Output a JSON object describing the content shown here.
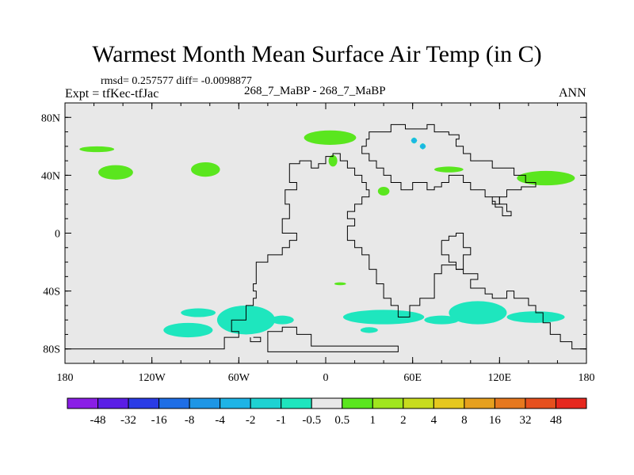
{
  "title": "Warmest Month Mean Surface Air Temp (in C)",
  "stats_text": "rmsd= 0.257577 diff= -0.0098877",
  "experiment": "Expt = tfKec-tfJac",
  "comparison": "268_7_MaBP - 268_7_MaBP",
  "period": "ANN",
  "lat_ticks": [
    {
      "lat": 80,
      "label": "80N"
    },
    {
      "lat": 40,
      "label": "40N"
    },
    {
      "lat": 0,
      "label": "0"
    },
    {
      "lat": -40,
      "label": "40S"
    },
    {
      "lat": -80,
      "label": "80S"
    }
  ],
  "lon_ticks": [
    {
      "lon": -180,
      "label": "180"
    },
    {
      "lon": -120,
      "label": "120W"
    },
    {
      "lon": -60,
      "label": "60W"
    },
    {
      "lon": 0,
      "label": "0"
    },
    {
      "lon": 60,
      "label": "60E"
    },
    {
      "lon": 120,
      "label": "120E"
    },
    {
      "lon": 180,
      "label": "180"
    }
  ],
  "colorbar": {
    "colors": [
      "#8a1ee6",
      "#5a1ee6",
      "#2a3ce6",
      "#1e6ee6",
      "#1e96e6",
      "#1eb4e6",
      "#1ed2d2",
      "#1ee6be",
      "#e8e8e8",
      "#5ae61e",
      "#a0e61e",
      "#c8dc1e",
      "#e6c81e",
      "#e6a01e",
      "#e6781e",
      "#e6501e",
      "#e6281e"
    ],
    "labels": [
      "-48",
      "-32",
      "-16",
      "-8",
      "-4",
      "-2",
      "-1",
      "-0.5",
      "0.5",
      "1",
      "2",
      "4",
      "8",
      "16",
      "32",
      "48"
    ]
  },
  "colors": {
    "background_field": "#e8e8e8",
    "positive_anomaly": "#5ae61e",
    "negative_anomaly": "#1ee6be",
    "strong_negative": "#1eb4e6"
  },
  "anomaly_regions": [
    {
      "sign": "positive",
      "lon": -145,
      "lat": 42,
      "rlon": 12,
      "rlat": 5
    },
    {
      "sign": "positive",
      "lon": -158,
      "lat": 58,
      "rlon": 12,
      "rlat": 2
    },
    {
      "sign": "positive",
      "lon": -83,
      "lat": 44,
      "rlon": 10,
      "rlat": 5
    },
    {
      "sign": "positive",
      "lon": 3,
      "lat": 66,
      "rlon": 18,
      "rlat": 5
    },
    {
      "sign": "positive",
      "lon": 5,
      "lat": 50,
      "rlon": 3,
      "rlat": 4
    },
    {
      "sign": "positive",
      "lon": 40,
      "lat": 29,
      "rlon": 4,
      "rlat": 3
    },
    {
      "sign": "positive",
      "lon": 85,
      "lat": 44,
      "rlon": 10,
      "rlat": 2
    },
    {
      "sign": "positive",
      "lon": 152,
      "lat": 38,
      "rlon": 20,
      "rlat": 5
    },
    {
      "sign": "positive",
      "lon": 10,
      "lat": -35,
      "rlon": 4,
      "rlat": 1
    },
    {
      "sign": "negative",
      "lon": 61,
      "lat": 64,
      "rlon": 2,
      "rlat": 2
    },
    {
      "sign": "negative",
      "lon": 67,
      "lat": 60,
      "rlon": 2,
      "rlat": 2
    },
    {
      "sign": "negative",
      "lon": -95,
      "lat": -67,
      "rlon": 17,
      "rlat": 5
    },
    {
      "sign": "negative",
      "lon": -55,
      "lat": -60,
      "rlon": 20,
      "rlat": 10
    },
    {
      "sign": "negative",
      "lon": -88,
      "lat": -55,
      "rlon": 12,
      "rlat": 3
    },
    {
      "sign": "negative",
      "lon": -30,
      "lat": -60,
      "rlon": 8,
      "rlat": 3
    },
    {
      "sign": "negative",
      "lon": 40,
      "lat": -58,
      "rlon": 28,
      "rlat": 5
    },
    {
      "sign": "negative",
      "lon": 105,
      "lat": -55,
      "rlon": 20,
      "rlat": 8
    },
    {
      "sign": "negative",
      "lon": 145,
      "lat": -58,
      "rlon": 20,
      "rlat": 4
    },
    {
      "sign": "negative",
      "lon": 80,
      "lat": -60,
      "rlon": 12,
      "rlat": 3
    },
    {
      "sign": "negative",
      "lon": 30,
      "lat": -67,
      "rlon": 6,
      "rlat": 2
    }
  ],
  "coastlines": [
    [
      [
        -180,
        -83
      ],
      [
        -180,
        -80
      ],
      [
        -70,
        -80
      ],
      [
        -70,
        -72
      ],
      [
        -60,
        -72
      ],
      [
        -60,
        -68
      ],
      [
        -65,
        -68
      ],
      [
        -65,
        -60
      ],
      [
        -55,
        -60
      ],
      [
        -55,
        -50
      ],
      [
        -50,
        -50
      ],
      [
        -50,
        -45
      ],
      [
        -48,
        -45
      ],
      [
        -48,
        -40
      ],
      [
        -50,
        -40
      ],
      [
        -50,
        -35
      ],
      [
        -48,
        -35
      ],
      [
        -48,
        -20
      ],
      [
        -40,
        -20
      ],
      [
        -40,
        -15
      ],
      [
        -30,
        -15
      ],
      [
        -30,
        -10
      ],
      [
        -25,
        -10
      ],
      [
        -25,
        -5
      ],
      [
        -20,
        -5
      ],
      [
        -20,
        0
      ],
      [
        -30,
        0
      ],
      [
        -30,
        5
      ],
      [
        -30,
        10
      ],
      [
        -25,
        10
      ],
      [
        -25,
        20
      ],
      [
        -28,
        20
      ],
      [
        -28,
        30
      ],
      [
        -20,
        30
      ],
      [
        -20,
        35
      ],
      [
        -25,
        35
      ],
      [
        -25,
        48
      ],
      [
        -18,
        48
      ],
      [
        -18,
        50
      ],
      [
        -10,
        50
      ],
      [
        -10,
        45
      ],
      [
        -5,
        45
      ],
      [
        -5,
        48
      ],
      [
        0,
        48
      ],
      [
        0,
        53
      ],
      [
        5,
        53
      ],
      [
        5,
        55
      ],
      [
        10,
        55
      ],
      [
        10,
        50
      ],
      [
        15,
        50
      ],
      [
        15,
        45
      ],
      [
        20,
        45
      ],
      [
        20,
        40
      ],
      [
        25,
        40
      ],
      [
        25,
        35
      ],
      [
        28,
        35
      ],
      [
        28,
        30
      ],
      [
        30,
        30
      ],
      [
        30,
        25
      ],
      [
        25,
        25
      ],
      [
        25,
        20
      ],
      [
        20,
        20
      ],
      [
        20,
        15
      ],
      [
        15,
        15
      ],
      [
        15,
        10
      ],
      [
        20,
        10
      ],
      [
        20,
        5
      ],
      [
        15,
        5
      ],
      [
        15,
        -5
      ],
      [
        20,
        -5
      ],
      [
        20,
        -10
      ],
      [
        25,
        -10
      ],
      [
        25,
        -15
      ],
      [
        30,
        -15
      ],
      [
        30,
        -25
      ],
      [
        35,
        -25
      ],
      [
        35,
        -35
      ],
      [
        40,
        -35
      ],
      [
        40,
        -45
      ],
      [
        45,
        -45
      ],
      [
        45,
        -50
      ],
      [
        50,
        -50
      ],
      [
        50,
        -58
      ],
      [
        58,
        -58
      ],
      [
        58,
        -50
      ],
      [
        65,
        -50
      ],
      [
        65,
        -45
      ],
      [
        75,
        -45
      ],
      [
        75,
        -28
      ],
      [
        80,
        -28
      ],
      [
        80,
        -22
      ],
      [
        90,
        -22
      ],
      [
        90,
        -25
      ],
      [
        95,
        -25
      ],
      [
        95,
        -28
      ],
      [
        105,
        -28
      ],
      [
        105,
        -32
      ],
      [
        100,
        -32
      ],
      [
        100,
        -38
      ],
      [
        110,
        -38
      ],
      [
        110,
        -42
      ],
      [
        115,
        -42
      ],
      [
        115,
        -45
      ],
      [
        125,
        -45
      ],
      [
        125,
        -40
      ],
      [
        130,
        -40
      ],
      [
        130,
        -45
      ],
      [
        140,
        -45
      ],
      [
        140,
        -50
      ],
      [
        145,
        -50
      ],
      [
        145,
        -55
      ],
      [
        150,
        -55
      ],
      [
        150,
        -62
      ],
      [
        155,
        -62
      ],
      [
        155,
        -70
      ],
      [
        162,
        -70
      ],
      [
        162,
        -75
      ],
      [
        170,
        -75
      ],
      [
        170,
        -80
      ],
      [
        180,
        -80
      ]
    ],
    [
      [
        -40,
        -75
      ],
      [
        -40,
        -68
      ],
      [
        -30,
        -68
      ],
      [
        -30,
        -65
      ],
      [
        -20,
        -65
      ],
      [
        -20,
        -70
      ],
      [
        -10,
        -70
      ],
      [
        -10,
        -78
      ],
      [
        50,
        -78
      ],
      [
        50,
        -82
      ],
      [
        -40,
        -82
      ],
      [
        -40,
        -75
      ]
    ],
    [
      [
        -50,
        -72
      ],
      [
        -45,
        -72
      ],
      [
        -45,
        -75
      ],
      [
        -52,
        -75
      ],
      [
        -52,
        -72
      ]
    ],
    [
      [
        32,
        70
      ],
      [
        45,
        70
      ],
      [
        45,
        75
      ],
      [
        55,
        75
      ],
      [
        55,
        72
      ],
      [
        70,
        72
      ],
      [
        70,
        75
      ],
      [
        75,
        75
      ],
      [
        75,
        70
      ],
      [
        85,
        70
      ],
      [
        85,
        68
      ],
      [
        92,
        68
      ],
      [
        92,
        65
      ],
      [
        90,
        65
      ],
      [
        90,
        60
      ],
      [
        95,
        60
      ],
      [
        95,
        55
      ],
      [
        100,
        55
      ],
      [
        100,
        50
      ],
      [
        115,
        50
      ],
      [
        115,
        45
      ],
      [
        130,
        45
      ],
      [
        130,
        40
      ],
      [
        138,
        40
      ],
      [
        138,
        35
      ],
      [
        145,
        35
      ],
      [
        145,
        32
      ],
      [
        135,
        32
      ],
      [
        135,
        30
      ],
      [
        125,
        30
      ],
      [
        125,
        25
      ],
      [
        120,
        25
      ],
      [
        120,
        20
      ],
      [
        115,
        20
      ],
      [
        115,
        25
      ],
      [
        110,
        25
      ],
      [
        110,
        30
      ],
      [
        100,
        30
      ],
      [
        100,
        35
      ],
      [
        95,
        35
      ],
      [
        95,
        40
      ],
      [
        85,
        40
      ],
      [
        85,
        35
      ],
      [
        80,
        35
      ],
      [
        80,
        32
      ],
      [
        75,
        32
      ],
      [
        75,
        30
      ],
      [
        70,
        30
      ],
      [
        70,
        35
      ],
      [
        60,
        35
      ],
      [
        60,
        30
      ],
      [
        52,
        30
      ],
      [
        52,
        35
      ],
      [
        45,
        35
      ],
      [
        45,
        40
      ],
      [
        40,
        40
      ],
      [
        40,
        45
      ],
      [
        35,
        45
      ],
      [
        35,
        50
      ],
      [
        30,
        50
      ],
      [
        30,
        55
      ],
      [
        25,
        55
      ],
      [
        25,
        60
      ],
      [
        28,
        60
      ],
      [
        28,
        65
      ],
      [
        30,
        65
      ],
      [
        30,
        70
      ],
      [
        32,
        70
      ]
    ],
    [
      [
        80,
        -5
      ],
      [
        85,
        -5
      ],
      [
        85,
        -2
      ],
      [
        90,
        -2
      ],
      [
        90,
        0
      ],
      [
        95,
        0
      ],
      [
        95,
        -10
      ],
      [
        100,
        -10
      ],
      [
        100,
        -15
      ],
      [
        95,
        -15
      ],
      [
        95,
        -25
      ],
      [
        90,
        -25
      ],
      [
        90,
        -20
      ],
      [
        85,
        -20
      ],
      [
        85,
        -15
      ],
      [
        80,
        -15
      ],
      [
        80,
        -5
      ]
    ],
    [
      [
        115,
        25
      ],
      [
        120,
        25
      ],
      [
        120,
        20
      ],
      [
        125,
        20
      ],
      [
        125,
        15
      ],
      [
        128,
        15
      ],
      [
        128,
        12
      ],
      [
        122,
        12
      ],
      [
        122,
        18
      ],
      [
        117,
        18
      ],
      [
        117,
        22
      ],
      [
        115,
        22
      ]
    ]
  ]
}
